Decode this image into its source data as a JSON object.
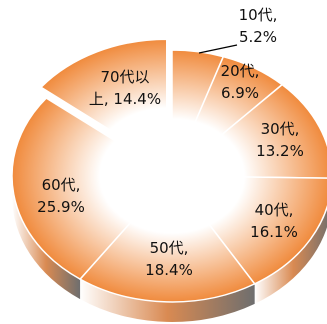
{
  "chart_data": {
    "type": "pie",
    "style": "3d-shaded",
    "legend": "none",
    "slices": [
      {
        "name": "10代",
        "value": 5.2,
        "label": "10代,",
        "pct_label": "5.2%"
      },
      {
        "name": "20代",
        "value": 6.9,
        "label": "20代,",
        "pct_label": "6.9%"
      },
      {
        "name": "30代",
        "value": 13.2,
        "label": "30代,",
        "pct_label": "13.2%"
      },
      {
        "name": "40代",
        "value": 16.1,
        "label": "40代,",
        "pct_label": "16.1%"
      },
      {
        "name": "50代",
        "value": 18.4,
        "label": "50代,",
        "pct_label": "18.4%"
      },
      {
        "name": "60代",
        "value": 25.9,
        "label": "60代,",
        "pct_label": "25.9%"
      },
      {
        "name": "70代以上",
        "value": 14.4,
        "label": "70代以",
        "pct_label": "上, 14.4%"
      }
    ],
    "colors": {
      "light": "#ffffff",
      "dark": "#f08a3c",
      "side_dark": "#7a7a7a",
      "edge": "#ffffff",
      "leader": "#000000"
    }
  }
}
